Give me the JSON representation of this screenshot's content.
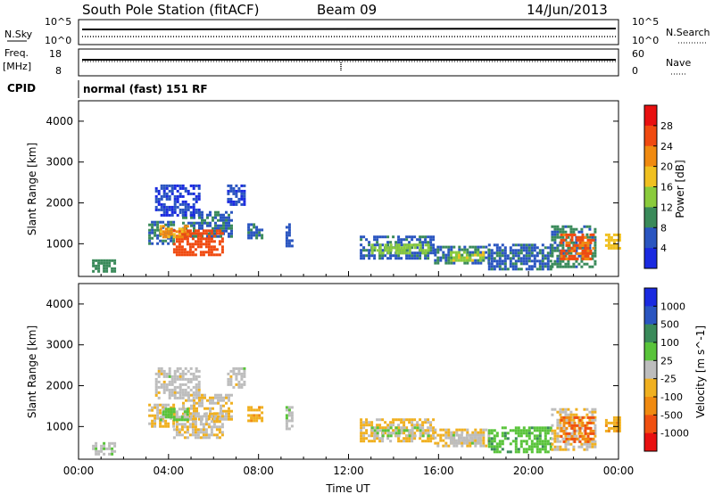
{
  "header": {
    "station": "South Pole Station (fitACF)",
    "beam": "Beam 09",
    "date": "14/Jun/2013",
    "cpid_label": "CPID",
    "cpid_value": "normal (fast) 151 RF"
  },
  "top_panels": {
    "nsky": {
      "left_label": "N.Sky",
      "left_ticks": [
        "10^5",
        "10^0"
      ],
      "right_label": "N.Search",
      "right_ticks": [
        "10^5",
        "10^0"
      ]
    },
    "freq": {
      "left_label_line1": "Freq.",
      "left_label_line2": "[MHz]",
      "left_ticks": [
        "18",
        "8"
      ],
      "right_label": "Nave",
      "right_ticks": [
        "60",
        "0"
      ]
    }
  },
  "colors": {
    "power": [
      "#1a2ae0",
      "#2a55c0",
      "#3a8a5a",
      "#8acb3c",
      "#f0c020",
      "#f08a10",
      "#f04a10",
      "#e81010"
    ],
    "velocity": [
      "#1a2ae0",
      "#2a55c0",
      "#3a8a5a",
      "#59c43a",
      "#bdbdbd",
      "#f0b020",
      "#f08a10",
      "#f05010",
      "#e81010"
    ]
  },
  "chart_data": [
    {
      "type": "heatmap",
      "panel": "power",
      "ylabel": "Slant Range [km]",
      "yticks": [
        1000,
        2000,
        3000,
        4000
      ],
      "ylim": [
        200,
        4500
      ],
      "xlim": [
        0,
        24
      ],
      "xticks": [
        "00:00",
        "04:00",
        "08:00",
        "12:00",
        "16:00",
        "20:00",
        "00:00"
      ],
      "colorbar": {
        "label": "Power [dB]",
        "range": [
          0,
          32
        ],
        "ticks": [
          "4",
          "8",
          "12",
          "16",
          "20",
          "24",
          "28"
        ]
      },
      "regions": [
        {
          "t": [
            0.6,
            1.6
          ],
          "r": [
            330,
            620
          ],
          "v": 10
        },
        {
          "t": [
            3.1,
            4.2
          ],
          "r": [
            1000,
            1560
          ],
          "v": 8
        },
        {
          "t": [
            4.6,
            6.8
          ],
          "r": [
            1150,
            1800
          ],
          "v": 8
        },
        {
          "t": [
            3.4,
            5.4
          ],
          "r": [
            1700,
            2450
          ],
          "v": 4
        },
        {
          "t": [
            4.2,
            6.4
          ],
          "r": [
            700,
            1350
          ],
          "v": 26
        },
        {
          "t": [
            3.6,
            4.9
          ],
          "r": [
            1150,
            1460
          ],
          "v": 21
        },
        {
          "t": [
            6.6,
            7.4
          ],
          "r": [
            1950,
            2450
          ],
          "v": 5
        },
        {
          "t": [
            7.5,
            8.2
          ],
          "r": [
            1150,
            1500
          ],
          "v": 7
        },
        {
          "t": [
            9.2,
            9.5
          ],
          "r": [
            950,
            1500
          ],
          "v": 6
        },
        {
          "t": [
            12.5,
            15.8
          ],
          "r": [
            650,
            1200
          ],
          "v": 7
        },
        {
          "t": [
            13.0,
            15.5
          ],
          "r": [
            780,
            1000
          ],
          "v": 14
        },
        {
          "t": [
            15.8,
            18.2
          ],
          "r": [
            550,
            950
          ],
          "v": 8
        },
        {
          "t": [
            16.5,
            18.0
          ],
          "r": [
            620,
            820
          ],
          "v": 15
        },
        {
          "t": [
            18.2,
            21.0
          ],
          "r": [
            400,
            1000
          ],
          "v": 7
        },
        {
          "t": [
            21.0,
            23.0
          ],
          "r": [
            450,
            1450
          ],
          "v": 9
        },
        {
          "t": [
            21.4,
            22.9
          ],
          "r": [
            650,
            1250
          ],
          "v": 25
        },
        {
          "t": [
            23.4,
            24.0
          ],
          "r": [
            900,
            1250
          ],
          "v": 18
        }
      ]
    },
    {
      "type": "heatmap",
      "panel": "velocity",
      "ylabel": "Slant Range [km]",
      "yticks": [
        1000,
        2000,
        3000,
        4000
      ],
      "ylim": [
        200,
        4500
      ],
      "xlim": [
        0,
        24
      ],
      "xticks": [
        "00:00",
        "04:00",
        "08:00",
        "12:00",
        "16:00",
        "20:00",
        "00:00"
      ],
      "xlabel": "Time UT",
      "colorbar": {
        "label": "Velocity [m s^-1]",
        "range": [
          -1250,
          1250
        ],
        "ticks": [
          "1000",
          "500",
          "100",
          "25",
          "-25",
          "-100",
          "-500",
          "-1000"
        ]
      },
      "regions": [
        {
          "t": [
            0.6,
            1.6
          ],
          "r": [
            330,
            620
          ],
          "v": 60
        },
        {
          "t": [
            3.1,
            4.2
          ],
          "r": [
            1000,
            1560
          ],
          "v": -150
        },
        {
          "t": [
            4.6,
            6.8
          ],
          "r": [
            1150,
            1800
          ],
          "v": -120
        },
        {
          "t": [
            3.4,
            5.4
          ],
          "r": [
            1700,
            2450
          ],
          "v": 0
        },
        {
          "t": [
            4.2,
            6.4
          ],
          "r": [
            700,
            1350
          ],
          "v": -100
        },
        {
          "t": [
            3.6,
            4.9
          ],
          "r": [
            1150,
            1460
          ],
          "v": 200
        },
        {
          "t": [
            6.6,
            7.4
          ],
          "r": [
            1950,
            2450
          ],
          "v": 0
        },
        {
          "t": [
            7.5,
            8.2
          ],
          "r": [
            1150,
            1500
          ],
          "v": -300
        },
        {
          "t": [
            9.2,
            9.5
          ],
          "r": [
            950,
            1500
          ],
          "v": 80
        },
        {
          "t": [
            12.5,
            15.8
          ],
          "r": [
            650,
            1200
          ],
          "v": -200
        },
        {
          "t": [
            13.0,
            15.5
          ],
          "r": [
            780,
            1000
          ],
          "v": 150
        },
        {
          "t": [
            15.8,
            18.2
          ],
          "r": [
            550,
            950
          ],
          "v": -150
        },
        {
          "t": [
            16.5,
            18.0
          ],
          "r": [
            620,
            820
          ],
          "v": 0
        },
        {
          "t": [
            18.2,
            21.0
          ],
          "r": [
            400,
            1000
          ],
          "v": 300
        },
        {
          "t": [
            21.0,
            23.0
          ],
          "r": [
            450,
            1450
          ],
          "v": -100
        },
        {
          "t": [
            21.4,
            22.9
          ],
          "r": [
            650,
            1250
          ],
          "v": -700
        },
        {
          "t": [
            23.4,
            24.0
          ],
          "r": [
            900,
            1250
          ],
          "v": -300
        }
      ]
    }
  ]
}
